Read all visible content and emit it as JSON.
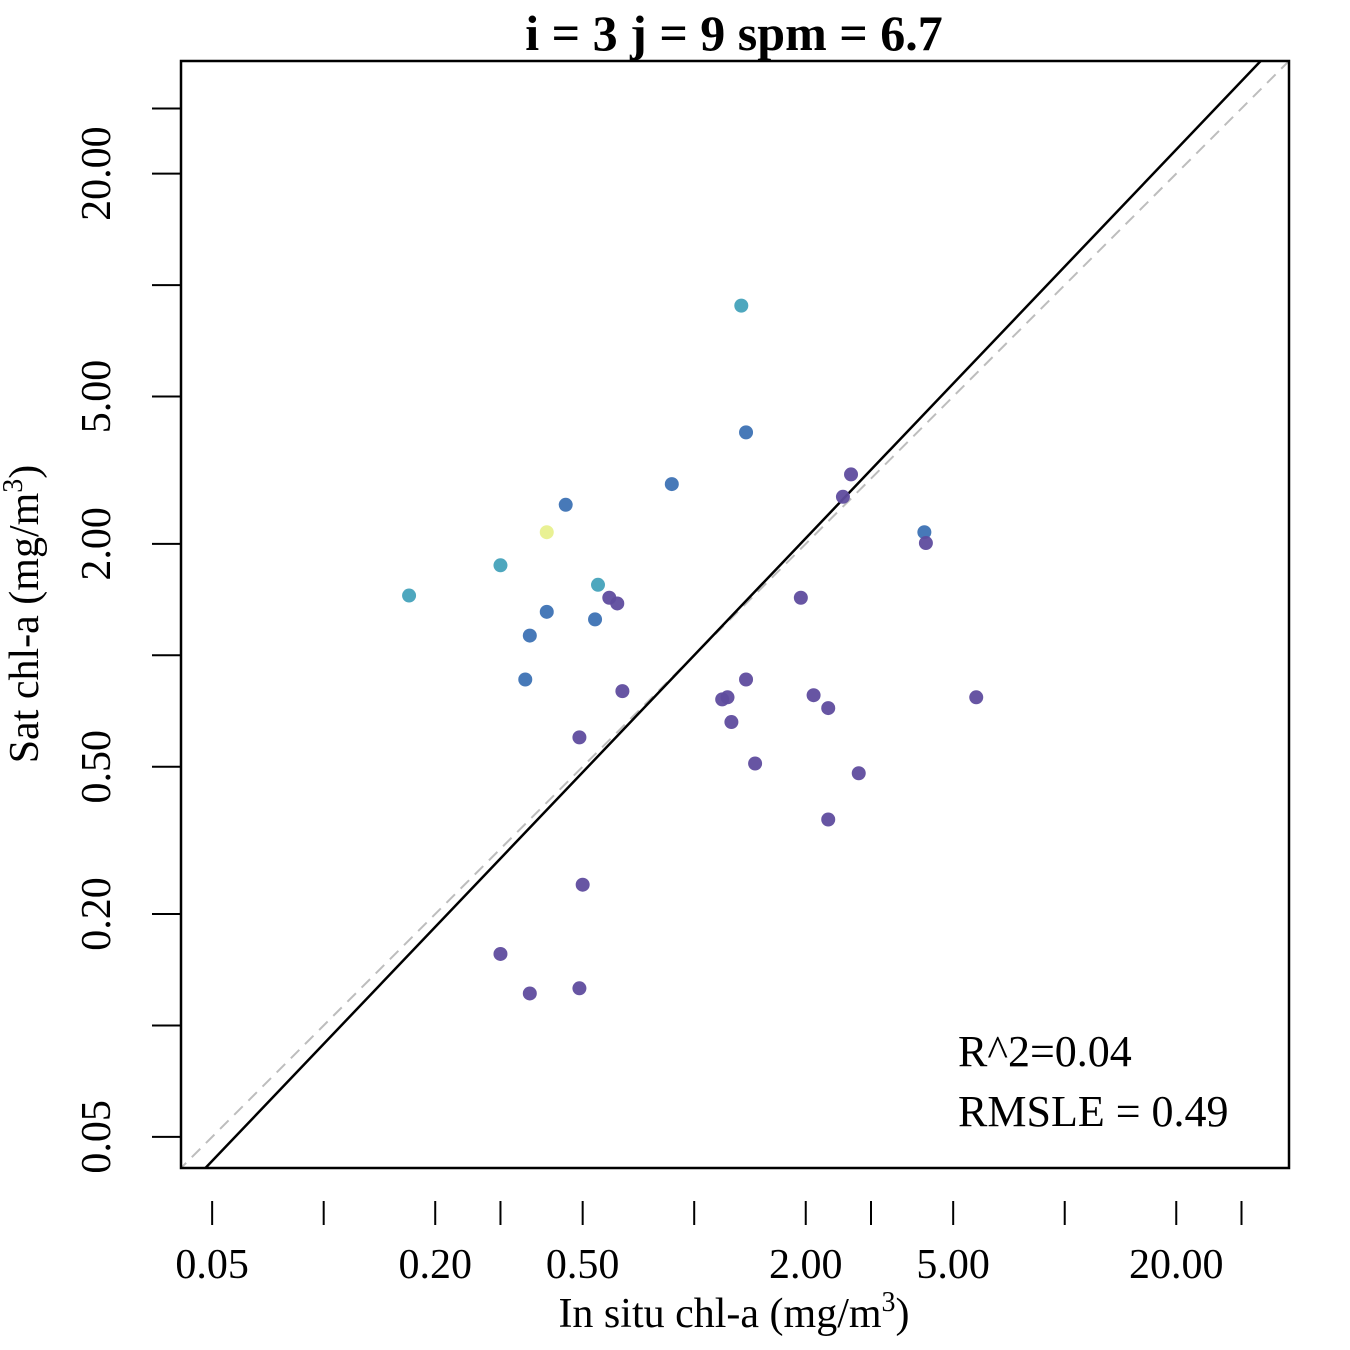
{
  "chart_data": {
    "type": "scatter",
    "title": "i = 3 j = 9 spm = 6.7",
    "xlabel": "In situ chl-a (mg/m",
    "ylabel": "Sat chl-a (mg/m",
    "unit_exponent": "3",
    "unit_close": ")",
    "x_scale": "log10",
    "y_scale": "log10",
    "xlim": [
      0.0412,
      40.3
    ],
    "ylim": [
      0.0412,
      40.3
    ],
    "x_ticks": [
      0.05,
      0.1,
      0.2,
      0.3,
      0.5,
      1,
      2,
      3,
      5,
      10,
      20,
      30
    ],
    "x_tick_labels": [
      {
        "value": 0.05,
        "label": "0.05"
      },
      {
        "value": 0.2,
        "label": "0.20"
      },
      {
        "value": 0.5,
        "label": "0.50"
      },
      {
        "value": 2,
        "label": "2.00"
      },
      {
        "value": 5,
        "label": "5.00"
      },
      {
        "value": 20,
        "label": "20.00"
      }
    ],
    "y_ticks": [
      0.05,
      0.1,
      0.2,
      0.5,
      1,
      2,
      5,
      10,
      20,
      30
    ],
    "y_tick_labels": [
      {
        "value": 0.05,
        "label": "0.05"
      },
      {
        "value": 0.2,
        "label": "0.20"
      },
      {
        "value": 0.5,
        "label": "0.50"
      },
      {
        "value": 2,
        "label": "2.00"
      },
      {
        "value": 5,
        "label": "5.00"
      },
      {
        "value": 20,
        "label": "20.00"
      }
    ],
    "regression_line": {
      "slope": 1.05,
      "intercept_log10": 0.0,
      "style": "solid",
      "color": "#000000"
    },
    "reference_line": {
      "slope": 1,
      "intercept_log10": 0,
      "style": "dashed",
      "color": "#bdbdbd"
    },
    "annotations": [
      "R^2=0.04",
      "RMSLE = 0.49"
    ],
    "annotation_position": "bottom-right",
    "colors": {
      "purple": "#5f4c9e",
      "blue": "#3d72b4",
      "teal": "#45a2bb",
      "yellow": "#e8f08e"
    },
    "points": [
      {
        "x": 1.34,
        "y": 8.8,
        "color": "teal"
      },
      {
        "x": 1.38,
        "y": 4.0,
        "color": "blue"
      },
      {
        "x": 0.87,
        "y": 2.9,
        "color": "blue"
      },
      {
        "x": 0.45,
        "y": 2.55,
        "color": "blue"
      },
      {
        "x": 0.4,
        "y": 2.15,
        "color": "yellow"
      },
      {
        "x": 0.3,
        "y": 1.75,
        "color": "teal"
      },
      {
        "x": 0.17,
        "y": 1.45,
        "color": "teal"
      },
      {
        "x": 0.55,
        "y": 1.55,
        "color": "teal"
      },
      {
        "x": 0.59,
        "y": 1.43,
        "color": "purple"
      },
      {
        "x": 0.62,
        "y": 1.38,
        "color": "purple"
      },
      {
        "x": 0.4,
        "y": 1.31,
        "color": "blue"
      },
      {
        "x": 0.54,
        "y": 1.25,
        "color": "blue"
      },
      {
        "x": 0.36,
        "y": 1.13,
        "color": "blue"
      },
      {
        "x": 0.35,
        "y": 0.86,
        "color": "blue"
      },
      {
        "x": 0.64,
        "y": 0.8,
        "color": "purple"
      },
      {
        "x": 0.49,
        "y": 0.6,
        "color": "purple"
      },
      {
        "x": 1.19,
        "y": 0.76,
        "color": "purple"
      },
      {
        "x": 1.23,
        "y": 0.77,
        "color": "purple"
      },
      {
        "x": 1.26,
        "y": 0.66,
        "color": "purple"
      },
      {
        "x": 1.38,
        "y": 0.86,
        "color": "purple"
      },
      {
        "x": 1.46,
        "y": 0.51,
        "color": "purple"
      },
      {
        "x": 1.94,
        "y": 1.43,
        "color": "purple"
      },
      {
        "x": 2.1,
        "y": 0.78,
        "color": "purple"
      },
      {
        "x": 2.3,
        "y": 0.72,
        "color": "purple"
      },
      {
        "x": 2.52,
        "y": 2.68,
        "color": "purple"
      },
      {
        "x": 2.65,
        "y": 3.08,
        "color": "purple"
      },
      {
        "x": 2.78,
        "y": 0.48,
        "color": "purple"
      },
      {
        "x": 2.3,
        "y": 0.36,
        "color": "purple"
      },
      {
        "x": 4.18,
        "y": 2.15,
        "color": "blue"
      },
      {
        "x": 4.22,
        "y": 2.01,
        "color": "purple"
      },
      {
        "x": 5.77,
        "y": 0.77,
        "color": "purple"
      },
      {
        "x": 0.5,
        "y": 0.24,
        "color": "purple"
      },
      {
        "x": 0.3,
        "y": 0.156,
        "color": "purple"
      },
      {
        "x": 0.36,
        "y": 0.122,
        "color": "purple"
      },
      {
        "x": 0.49,
        "y": 0.126,
        "color": "purple"
      }
    ]
  }
}
